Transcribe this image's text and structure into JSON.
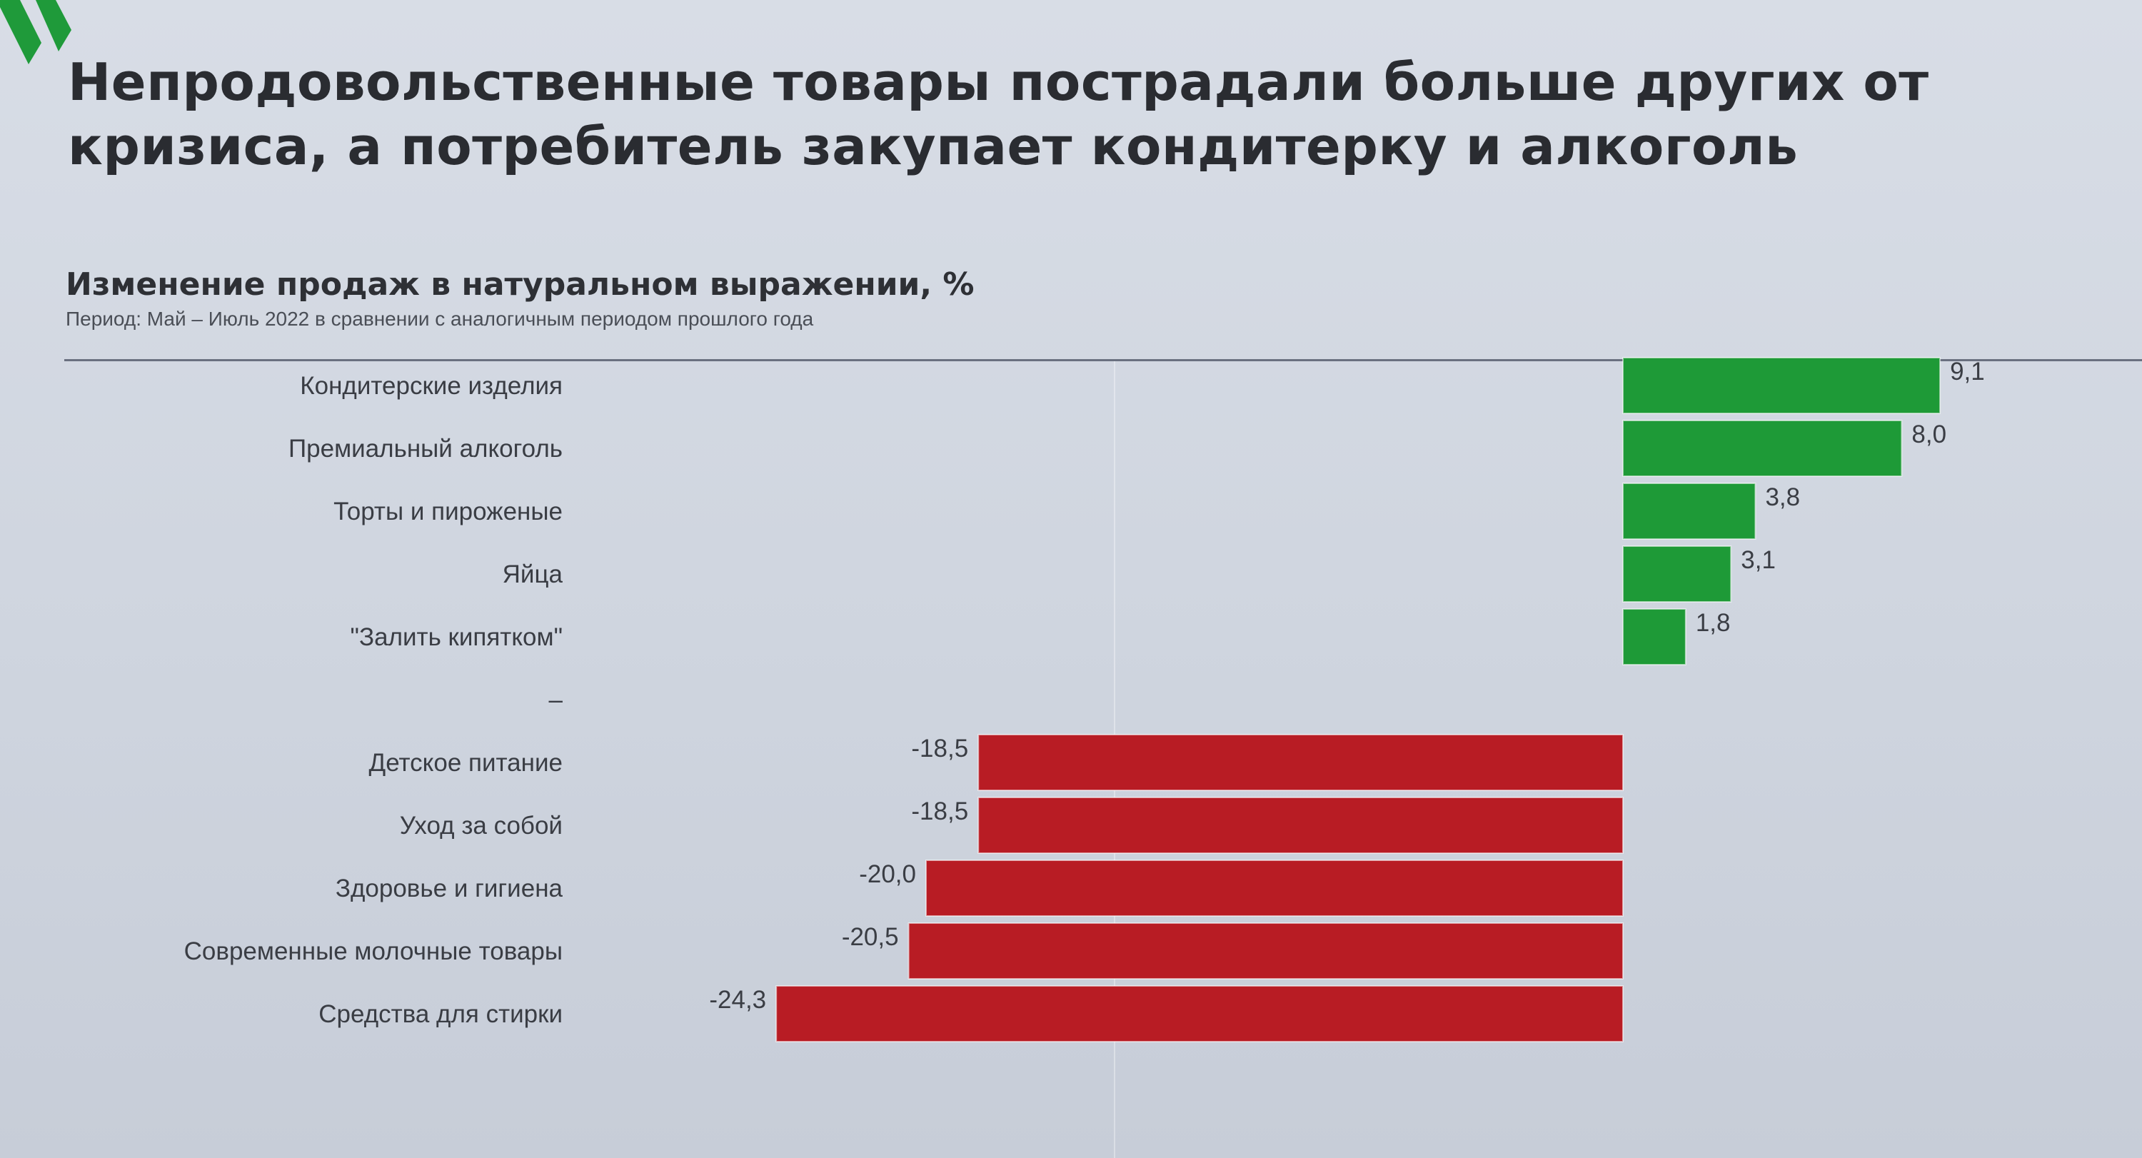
{
  "brand": {
    "logo_icon": "green-chevron-logo-icon",
    "accent": "#1f9a3a"
  },
  "headline": {
    "line1": "Непродовольственные товары пострадали больше других от",
    "line2": "кризиса, а потребитель закупает кондитерку и алкоголь"
  },
  "chart_data": {
    "type": "bar",
    "orientation": "horizontal",
    "title": "Изменение продаж в натуральном выражении, %",
    "subtitle": "Период: Май – Июль 2022 в сравнении с аналогичным периодом прошлого года",
    "categories": [
      "Кондитерские изделия",
      "Премиальный алкоголь",
      "Торты и пироженые",
      "Яйца",
      "\"Залить кипятком\"",
      "–",
      "Детское питание",
      "Уход за собой",
      "Здоровье и гигиена",
      "Современные молочные товары",
      "Средства для стирки"
    ],
    "values": [
      9.1,
      8.0,
      3.8,
      3.1,
      1.8,
      null,
      -18.5,
      -18.5,
      -20.0,
      -20.5,
      -24.3
    ],
    "value_labels": [
      "9,1",
      "8,0",
      "3,8",
      "3,1",
      "1,8",
      "",
      "-18,5",
      "-18,5",
      "-20,0",
      "-20,5",
      "-24,3"
    ],
    "colors": {
      "positive": "#1e9a37",
      "negative": "#b81c24"
    },
    "xlim": [
      -24.3,
      9.1
    ],
    "grid": false,
    "legend": "none"
  }
}
